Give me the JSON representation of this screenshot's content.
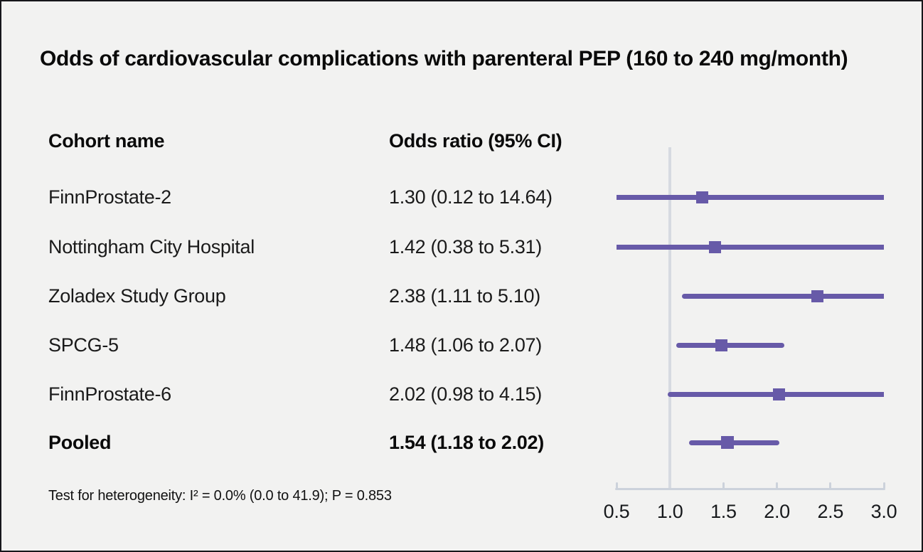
{
  "chart_data": {
    "type": "scatter",
    "variant": "forest-plot",
    "title": "Odds of cardiovascular complications with parenteral PEP (160 to 240 mg/month)",
    "columns": [
      "Cohort name",
      "Odds ratio (95% CI)"
    ],
    "studies": [
      {
        "name": "FinnProstate-2",
        "or_label": "1.30 (0.12 to 14.64)",
        "estimate": 1.3,
        "ci_lower": 0.12,
        "ci_upper": 14.64,
        "is_pooled": false
      },
      {
        "name": "Nottingham City Hospital",
        "or_label": "1.42 (0.38 to 5.31)",
        "estimate": 1.42,
        "ci_lower": 0.38,
        "ci_upper": 5.31,
        "is_pooled": false
      },
      {
        "name": "Zoladex Study Group",
        "or_label": "2.38 (1.11 to 5.10)",
        "estimate": 2.38,
        "ci_lower": 1.11,
        "ci_upper": 5.1,
        "is_pooled": false
      },
      {
        "name": "SPCG-5",
        "or_label": "1.48 (1.06 to 2.07)",
        "estimate": 1.48,
        "ci_lower": 1.06,
        "ci_upper": 2.07,
        "is_pooled": false
      },
      {
        "name": "FinnProstate-6",
        "or_label": "2.02 (0.98 to 4.15)",
        "estimate": 2.02,
        "ci_lower": 0.98,
        "ci_upper": 4.15,
        "is_pooled": false
      },
      {
        "name": "Pooled",
        "or_label": "1.54 (1.18 to 2.02)",
        "estimate": 1.54,
        "ci_lower": 1.18,
        "ci_upper": 2.02,
        "is_pooled": true
      }
    ],
    "x_axis": {
      "range": [
        0.5,
        3.0
      ],
      "ticks": [
        0.5,
        1.0,
        1.5,
        2.0,
        2.5,
        3.0
      ],
      "tick_labels": [
        "0.5",
        "1.0",
        "1.5",
        "2.0",
        "2.5",
        "3.0"
      ],
      "reference_line": 1.0,
      "grid": false
    },
    "footnote": "Test for heterogeneity: I² = 0.0% (0.0 to 41.9); P = 0.853",
    "legend": null,
    "colors": {
      "marker": "#675aa8",
      "ci_line": "#675aa8",
      "reference_line": "#d6dae1",
      "axis": "#ccd2db",
      "background": "#f2f2f1",
      "text": "#161616"
    }
  }
}
